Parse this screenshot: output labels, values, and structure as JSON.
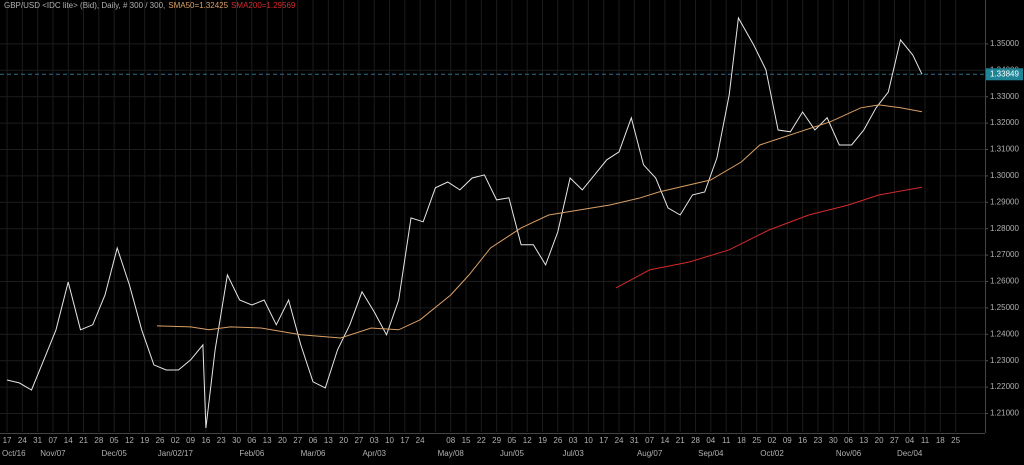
{
  "chart_data": {
    "type": "line",
    "title": "GBP/USD <IDC lite> (Bid), Daily, # 300 / 300,",
    "categories": [
      "17",
      "24",
      "31",
      "07",
      "14",
      "21",
      "28",
      "05",
      "12",
      "19",
      "26",
      "02",
      "09",
      "16",
      "23",
      "30",
      "06",
      "13",
      "20",
      "27",
      "06",
      "13",
      "20",
      "27",
      "03",
      "10",
      "17",
      "24",
      null,
      "08",
      "15",
      "22",
      "29",
      "05",
      "12",
      "19",
      "26",
      "03",
      "10",
      "17",
      "24",
      "31",
      "07",
      "14",
      "21",
      "28",
      "04",
      "11",
      "18",
      "25",
      "02",
      "09",
      "16",
      "23",
      "30",
      "06",
      "13",
      "20",
      "27",
      "04",
      "11",
      "18",
      "25"
    ],
    "months": [
      "Oct/16",
      null,
      null,
      "Nov/07",
      null,
      null,
      null,
      "Dec/05",
      null,
      null,
      null,
      "Jan/02/17",
      null,
      null,
      null,
      null,
      "Feb/06",
      null,
      null,
      null,
      "Mar/06",
      null,
      null,
      null,
      "Apr/03",
      null,
      null,
      null,
      null,
      "May/08",
      null,
      null,
      null,
      "Jun/05",
      null,
      null,
      null,
      "Jul/03",
      null,
      null,
      null,
      null,
      "Aug/07",
      null,
      null,
      null,
      "Sep/04",
      null,
      null,
      null,
      "Oct/02",
      null,
      null,
      null,
      null,
      "Nov/06",
      null,
      null,
      null,
      "Dec/04",
      null,
      null,
      null
    ],
    "xlim": [
      -2.3,
      319.6
    ],
    "ylim": [
      1.203,
      1.3636
    ],
    "yticks": [
      {
        "value": 1.21,
        "label": "1.21000"
      },
      {
        "value": 1.22,
        "label": "1.22000"
      },
      {
        "value": 1.23,
        "label": "1.23000"
      },
      {
        "value": 1.24,
        "label": "1.24000"
      },
      {
        "value": 1.25,
        "label": "1.25000"
      },
      {
        "value": 1.26,
        "label": "1.26000"
      },
      {
        "value": 1.27,
        "label": "1.27000"
      },
      {
        "value": 1.28,
        "label": "1.28000"
      },
      {
        "value": 1.29,
        "label": "1.29000"
      },
      {
        "value": 1.3,
        "label": "1.30000"
      },
      {
        "value": 1.31,
        "label": "1.31000"
      },
      {
        "value": 1.32,
        "label": "1.32000"
      },
      {
        "value": 1.33,
        "label": "1.33000"
      },
      {
        "value": 1.34,
        "label": "1.34000"
      },
      {
        "value": 1.35,
        "label": "1.35000"
      }
    ],
    "grid": true,
    "current_price": 1.33849,
    "series": [
      {
        "color": "#e6e6e6",
        "x": [
          0,
          4,
          8,
          12,
          16,
          20,
          24,
          28,
          32,
          36,
          40,
          44,
          48,
          52,
          56,
          60,
          64,
          65,
          68,
          72,
          76,
          80,
          84,
          88,
          92,
          96,
          100,
          104,
          108,
          112,
          116,
          120,
          124,
          128,
          132,
          136,
          140,
          144,
          148,
          152,
          156,
          160,
          164,
          168,
          172,
          176,
          180,
          184,
          188,
          192,
          196,
          200,
          204,
          208,
          212,
          216,
          220,
          224,
          228,
          232,
          236,
          239,
          244,
          248,
          252,
          256,
          260,
          264,
          268,
          272,
          276,
          280,
          284,
          288,
          292,
          296,
          299
        ],
        "values": [
          1.2227,
          1.2216,
          1.2189,
          1.2303,
          1.2417,
          1.2598,
          1.2417,
          1.2436,
          1.2549,
          1.2727,
          1.2587,
          1.2417,
          1.2284,
          1.2265,
          1.2265,
          1.2303,
          1.236,
          1.2045,
          1.2341,
          1.2625,
          1.253,
          1.2511,
          1.253,
          1.2436,
          1.253,
          1.236,
          1.222,
          1.2197,
          1.2341,
          1.2436,
          1.2561,
          1.2485,
          1.2398,
          1.253,
          1.2841,
          1.2826,
          1.2955,
          1.2977,
          1.2947,
          1.2992,
          1.3004,
          1.2909,
          1.2917,
          1.2739,
          1.2739,
          1.2663,
          1.2788,
          1.2992,
          1.2947,
          1.3004,
          1.3061,
          1.3091,
          1.322,
          1.3042,
          1.2992,
          1.2879,
          1.2852,
          1.2928,
          1.2939,
          1.3068,
          1.3307,
          1.3598,
          1.3496,
          1.3402,
          1.3174,
          1.3167,
          1.3242,
          1.3174,
          1.322,
          1.3117,
          1.3117,
          1.3174,
          1.3258,
          1.3318,
          1.3515,
          1.3458,
          1.3385
        ]
      },
      {
        "name": "SMA50=1.32425",
        "color": "#d9a066",
        "x": [
          49,
          60,
          66,
          73,
          83,
          96,
          109,
          119,
          128,
          135,
          145,
          151,
          158,
          168,
          177,
          187,
          197,
          207,
          213,
          223,
          230,
          240,
          246,
          253,
          259,
          269,
          279,
          285,
          292,
          299
        ],
        "values": [
          1.2432,
          1.2428,
          1.2417,
          1.2428,
          1.2424,
          1.2398,
          1.2386,
          1.2424,
          1.2417,
          1.2455,
          1.2549,
          1.2625,
          1.2727,
          1.2803,
          1.2852,
          1.2871,
          1.289,
          1.2917,
          1.2939,
          1.2966,
          1.2985,
          1.3053,
          1.3117,
          1.3144,
          1.3167,
          1.3205,
          1.3258,
          1.3269,
          1.3258,
          1.3243
        ]
      },
      {
        "name": "SMA200=1.29569",
        "color": "#d42a2a",
        "x": [
          199,
          210,
          223,
          236,
          249,
          262,
          275,
          285,
          299
        ],
        "values": [
          1.2576,
          1.2644,
          1.2674,
          1.272,
          1.2795,
          1.2852,
          1.289,
          1.2928,
          1.2957
        ]
      }
    ]
  }
}
